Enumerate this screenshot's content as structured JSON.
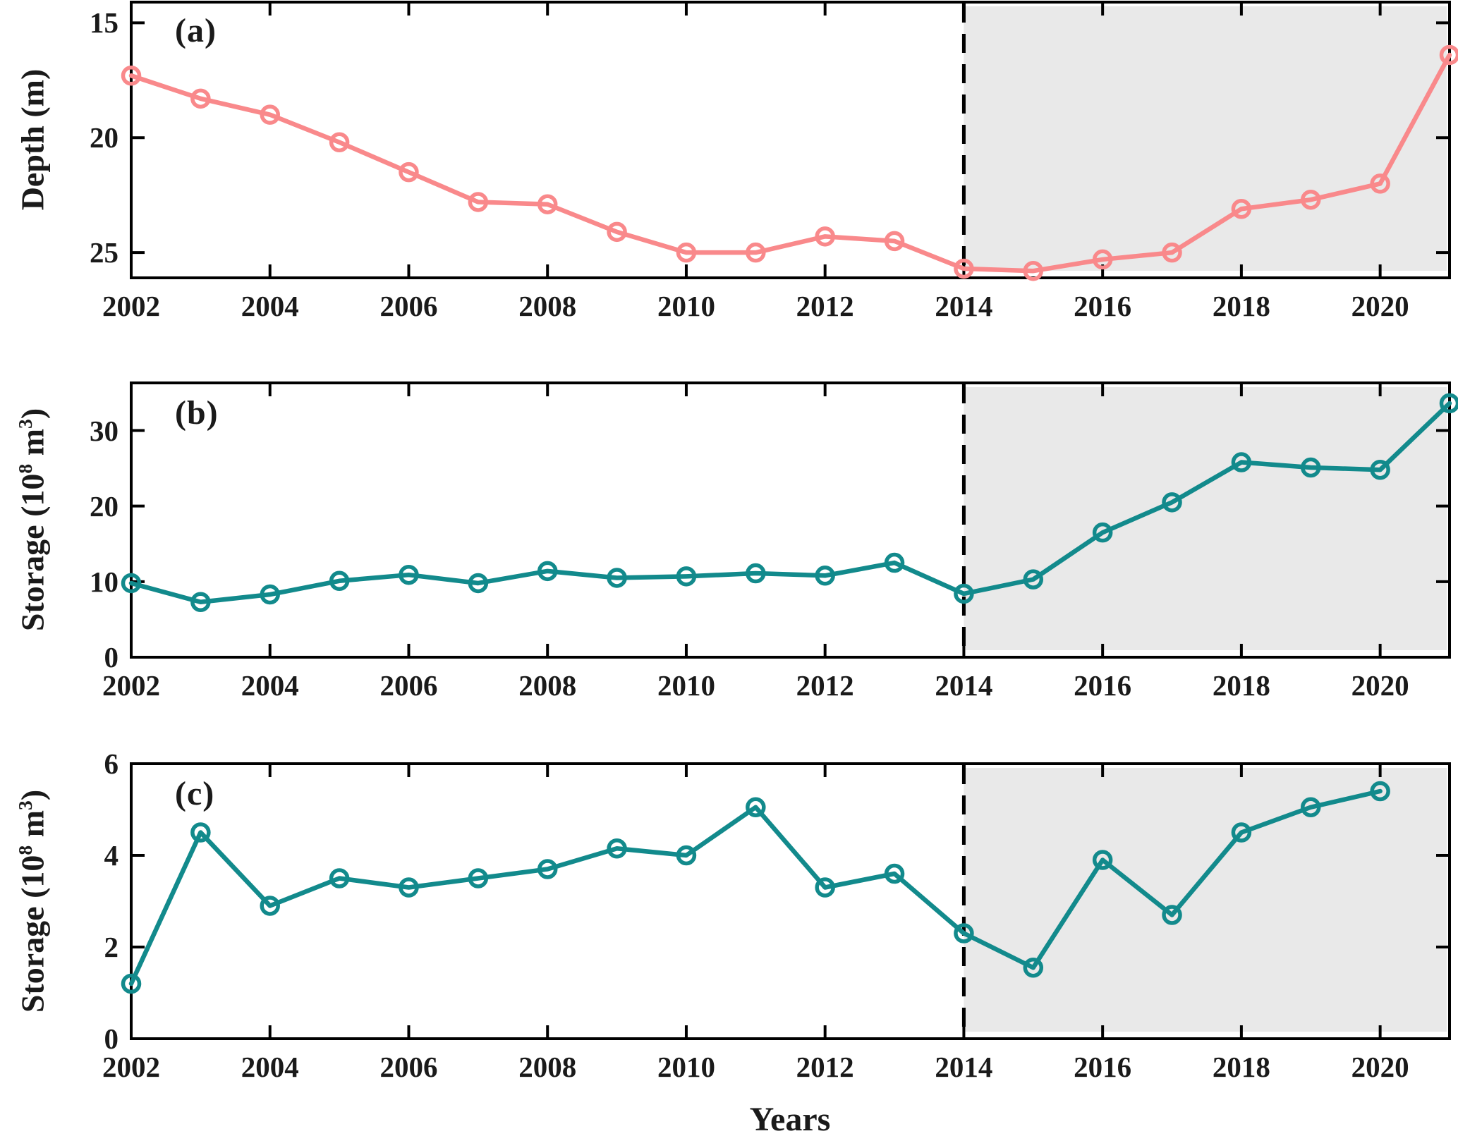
{
  "figure": {
    "kind": "three-panel scientific line chart",
    "background": "#ffffff",
    "text_color": "#1a1a1a",
    "axis_color": "#000000"
  },
  "shared": {
    "xlabel": "Years",
    "xlim": [
      2002,
      2021
    ],
    "xticks": [
      2002,
      2004,
      2006,
      2008,
      2010,
      2012,
      2014,
      2016,
      2018,
      2020
    ],
    "divider_year": 2014,
    "divider_style": "dashed-black-vertical",
    "highlight_region": {
      "from_year": 2014,
      "to_year": 2021,
      "color": "#e9e9e9"
    },
    "grid": "off",
    "legend": "none"
  },
  "chart_data": [
    {
      "type": "line",
      "panel_label": "(a)",
      "ylabel": "Depth (m)",
      "line_color": "#f9898b",
      "marker": "open-circle",
      "y_axis_inverted": true,
      "ylim_top": 14.1,
      "ylim_bottom": 26.1,
      "yticks": [
        15,
        20,
        25
      ],
      "x": [
        2002,
        2003,
        2004,
        2005,
        2006,
        2007,
        2008,
        2009,
        2010,
        2011,
        2012,
        2013,
        2014,
        2015,
        2016,
        2017,
        2018,
        2019,
        2020,
        2021
      ],
      "values": [
        17.3,
        18.3,
        19.0,
        20.2,
        21.5,
        22.8,
        22.9,
        24.1,
        25.0,
        25.0,
        24.3,
        24.5,
        25.7,
        25.8,
        25.3,
        25.0,
        23.1,
        22.7,
        22.0,
        16.4
      ]
    },
    {
      "type": "line",
      "panel_label": "(b)",
      "ylabel_parts": {
        "pre": "Storage (10",
        "sup1": "8",
        "mid": " m",
        "sup2": "3",
        "post": ")"
      },
      "line_color": "#128a8c",
      "marker": "open-circle",
      "y_axis_inverted": false,
      "ylim_top": 36.3,
      "ylim_bottom": 0,
      "yticks": [
        0,
        10,
        20,
        30
      ],
      "x": [
        2002,
        2003,
        2004,
        2005,
        2006,
        2007,
        2008,
        2009,
        2010,
        2011,
        2012,
        2013,
        2014,
        2015,
        2016,
        2017,
        2018,
        2019,
        2020,
        2021
      ],
      "values": [
        9.8,
        7.3,
        8.3,
        10.1,
        10.9,
        9.8,
        11.4,
        10.5,
        10.7,
        11.1,
        10.8,
        12.5,
        8.4,
        10.3,
        16.5,
        20.5,
        25.8,
        25.1,
        24.8,
        33.6
      ]
    },
    {
      "type": "line",
      "panel_label": "(c)",
      "ylabel_parts": {
        "pre": "Storage (10",
        "sup1": "8",
        "mid": " m",
        "sup2": "3",
        "post": ")"
      },
      "line_color": "#128a8c",
      "marker": "open-circle",
      "y_axis_inverted": false,
      "ylim_top": 6,
      "ylim_bottom": 0,
      "yticks": [
        0,
        2,
        4,
        6
      ],
      "x": [
        2002,
        2003,
        2004,
        2005,
        2006,
        2007,
        2008,
        2009,
        2010,
        2011,
        2012,
        2013,
        2014,
        2015,
        2016,
        2017,
        2018,
        2019,
        2020
      ],
      "values": [
        1.2,
        4.5,
        2.9,
        3.5,
        3.3,
        3.5,
        3.7,
        4.15,
        4.0,
        5.05,
        3.3,
        3.6,
        2.3,
        1.55,
        3.9,
        2.7,
        4.5,
        5.05,
        5.4
      ]
    }
  ]
}
